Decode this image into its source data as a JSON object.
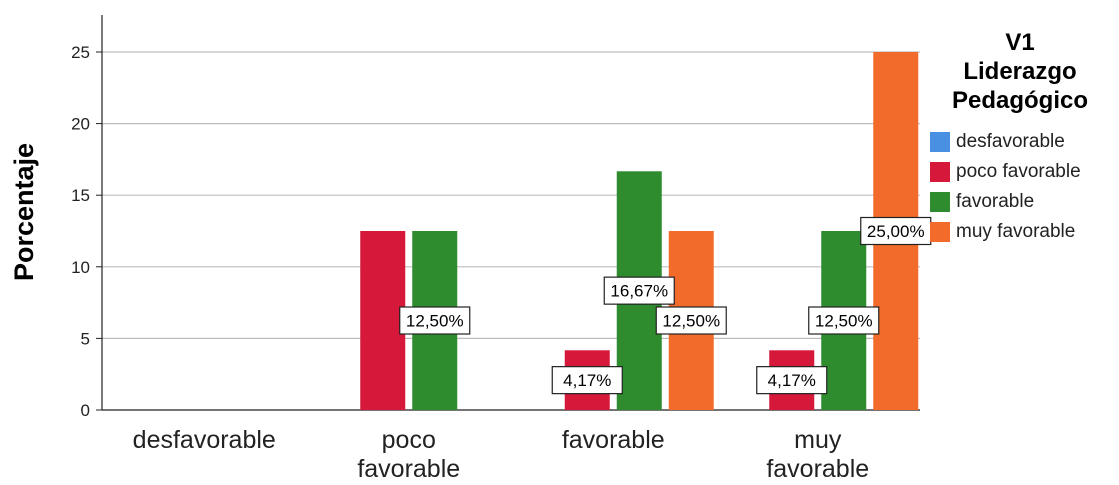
{
  "chart_data": {
    "type": "bar",
    "title": "",
    "xlabel": "",
    "ylabel": "Porcentaje",
    "ylim": [
      0,
      25
    ],
    "yticks": [
      "0",
      "5",
      "10",
      "15",
      "20",
      "25"
    ],
    "grid": true,
    "legend_position": "right",
    "categories": [
      {
        "label": "desfavorable",
        "lines": [
          "desfavorable"
        ]
      },
      {
        "label": "poco favorable",
        "lines": [
          "poco",
          "favorable"
        ]
      },
      {
        "label": "favorable",
        "lines": [
          "favorable"
        ]
      },
      {
        "label": "muy favorable",
        "lines": [
          "muy",
          "favorable"
        ]
      }
    ],
    "series": [
      {
        "name": "desfavorable",
        "color": "#4a90e2",
        "values": [
          0,
          0,
          0,
          0
        ],
        "labels": [
          "",
          "",
          "",
          ""
        ]
      },
      {
        "name": "poco favorable",
        "color": "#d6193b",
        "values": [
          0,
          12.5,
          4.17,
          4.17
        ],
        "labels": [
          "",
          "",
          "4,17%",
          "4,17%"
        ]
      },
      {
        "name": "favorable",
        "color": "#2e8b2e",
        "values": [
          0,
          12.5,
          16.67,
          12.5
        ],
        "labels": [
          "",
          "12,50%",
          "16,67%",
          "12,50%"
        ]
      },
      {
        "name": "muy favorable",
        "color": "#f26b2a",
        "values": [
          0,
          0,
          12.5,
          25
        ],
        "labels": [
          "",
          "",
          "12,50%",
          "25,00%"
        ]
      }
    ],
    "legend": {
      "title_lines": [
        "V1",
        "Liderazgo",
        "Pedagógico"
      ]
    }
  }
}
